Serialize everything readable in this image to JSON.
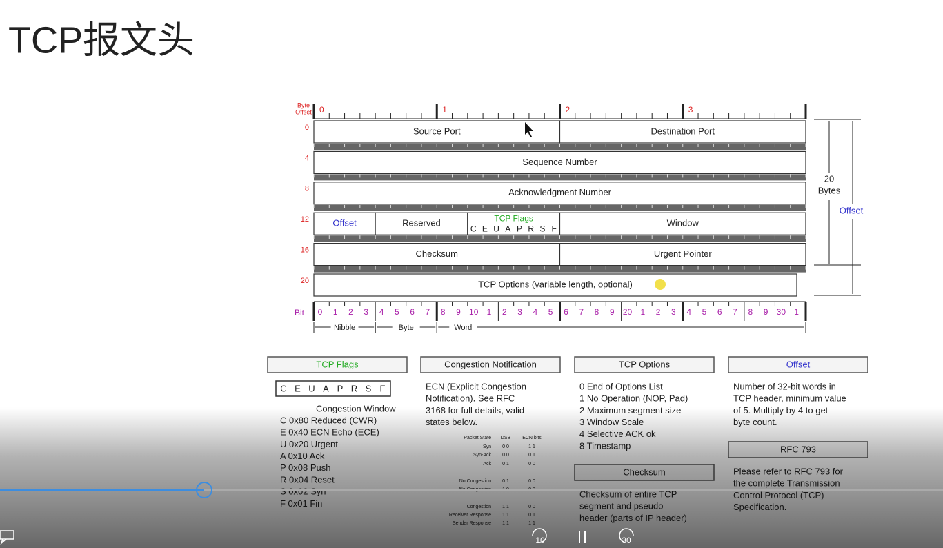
{
  "slide": {
    "title": "TCP报文头"
  },
  "diagram": {
    "byte_offset_label": [
      "Byte",
      "Offset"
    ],
    "byte_numbers": [
      "0",
      "1",
      "2",
      "3"
    ],
    "row_offsets": [
      "0",
      "4",
      "8",
      "12",
      "16",
      "20"
    ],
    "fields": [
      {
        "label": "Source Port"
      },
      {
        "label": "Destination Port"
      },
      {
        "label": "Sequence Number"
      },
      {
        "label": "Acknowledgment Number"
      },
      {
        "label": "Offset"
      },
      {
        "label": "Reserved"
      },
      {
        "label": "TCP Flags",
        "letters": [
          "C",
          "E",
          "U",
          "A",
          "P",
          "R",
          "S",
          "F"
        ]
      },
      {
        "label": "Window"
      },
      {
        "label": "Checksum"
      },
      {
        "label": "Urgent Pointer"
      },
      {
        "label": "TCP Options (variable length, optional)"
      }
    ],
    "size_label": [
      "20",
      "Bytes"
    ],
    "offset_label": "Offset",
    "bit_label": "Bit",
    "bits": [
      "0",
      "1",
      "2",
      "3",
      "4",
      "5",
      "6",
      "7",
      "8",
      "9",
      "10",
      "1",
      "2",
      "3",
      "4",
      "5",
      "6",
      "7",
      "8",
      "9",
      "20",
      "1",
      "2",
      "3",
      "4",
      "5",
      "6",
      "7",
      "8",
      "9",
      "30",
      "1"
    ],
    "units": [
      "Nibble",
      "Byte",
      "Word"
    ]
  },
  "panels": [
    {
      "title": "TCP Flags",
      "flags": [
        "C",
        "E",
        "U",
        "A",
        "P",
        "R",
        "S",
        "F"
      ],
      "subtitle": "Congestion Window",
      "lines": [
        "C 0x80 Reduced (CWR)",
        "E 0x40 ECN Echo (ECE)",
        "U 0x20 Urgent",
        "A 0x10 Ack",
        "P 0x08 Push",
        "R 0x04 Reset",
        "S 0x02 Syn",
        "F 0x01 Fin"
      ]
    },
    {
      "title": "Congestion Notification",
      "lines": [
        "ECN (Explicit Congestion",
        "Notification).  See RFC",
        "3168 for full details, valid",
        "states below."
      ],
      "table": {
        "header": [
          "Packet State",
          "DSB",
          "ECN bits"
        ],
        "rows": [
          [
            "Syn",
            "0 0",
            "1 1"
          ],
          [
            "Syn-Ack",
            "0 0",
            "0 1"
          ],
          [
            "Ack",
            "0 1",
            "0 0"
          ],
          [
            "No Congestion",
            "0 1",
            "0 0"
          ],
          [
            "No Congestion",
            "1 0",
            "0 0"
          ],
          [
            "Congestion",
            "1 1",
            "0 0"
          ],
          [
            "Receiver Response",
            "1 1",
            "0 1"
          ],
          [
            "Sender Response",
            "1 1",
            "1 1"
          ]
        ]
      }
    },
    {
      "title": "TCP Options",
      "lines": [
        "0 End of Options List",
        "1 No Operation (NOP, Pad)",
        "2 Maximum segment size",
        "3 Window Scale",
        "4 Selective ACK ok",
        "8 Timestamp"
      ]
    },
    {
      "title": "Offset",
      "lines": [
        "Number of 32-bit words in",
        "TCP header, minimum value",
        "of 5.  Multiply by 4 to get",
        "byte count."
      ]
    },
    {
      "title": "Checksum",
      "lines": [
        "Checksum of entire TCP",
        "segment and pseudo",
        "header (parts of IP header)"
      ]
    },
    {
      "title": "RFC 793",
      "lines": [
        "Please refer to RFC 793 for",
        "the complete Transmission",
        "Control Protocol (TCP)",
        "Specification."
      ]
    }
  ],
  "player": {
    "rewind": "10",
    "forward": "30"
  }
}
